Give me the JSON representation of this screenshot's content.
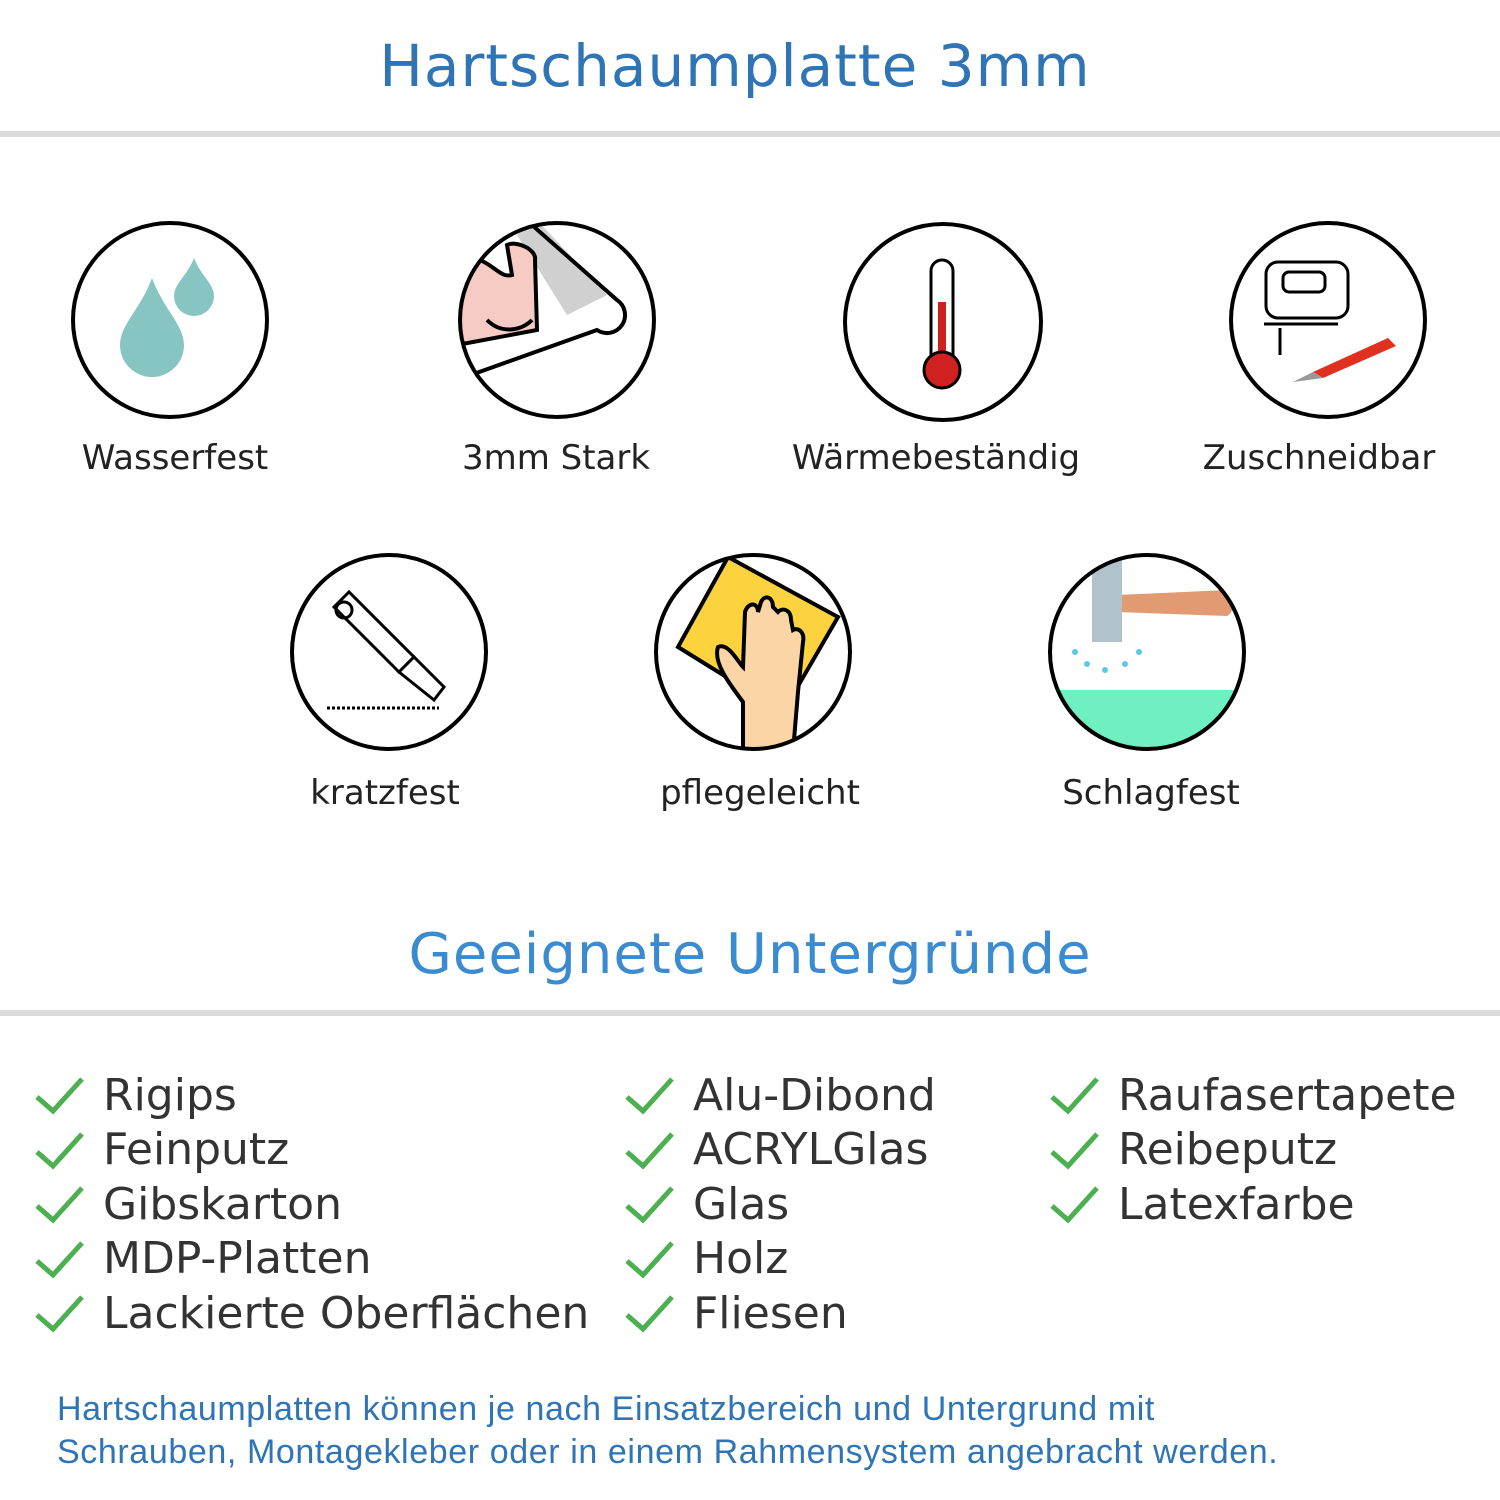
{
  "header": {
    "title": "Hartschaumplatte 3mm"
  },
  "features": [
    {
      "label": "Wasserfest",
      "icon": "water-drops-icon"
    },
    {
      "label": "3mm Stark",
      "icon": "strong-arm-icon"
    },
    {
      "label": "Wärmebeständig",
      "icon": "thermometer-icon"
    },
    {
      "label": "Zuschneidbar",
      "icon": "jigsaw-knife-icon"
    },
    {
      "label": "kratzfest",
      "icon": "cutter-knife-icon"
    },
    {
      "label": "pflegeleicht",
      "icon": "cleaning-hand-icon"
    },
    {
      "label": "Schlagfest",
      "icon": "hammer-icon"
    }
  ],
  "surfaces": {
    "title": "Geeignete Untergründe",
    "columns": [
      [
        "Rigips",
        "Feinputz",
        "Gibskarton",
        "MDP-Platten",
        "Lackierte Oberflächen"
      ],
      [
        "Alu-Dibond",
        "ACRYLGlas",
        "Glas",
        "Holz",
        "Fliesen"
      ],
      [
        "Raufasertapete",
        "Reibeputz",
        "Latexfarbe"
      ]
    ]
  },
  "footer": {
    "line1": "Hartschaumplatten können je nach Einsatzbereich und Untergrund mit",
    "line2": "Schrauben, Montagekleber oder in einem Rahmensystem angebracht werden."
  },
  "colors": {
    "title": "#2f74b5",
    "subtitle": "#3a8bd0",
    "check": "#4caf50",
    "divider": "#dcdcdc"
  }
}
